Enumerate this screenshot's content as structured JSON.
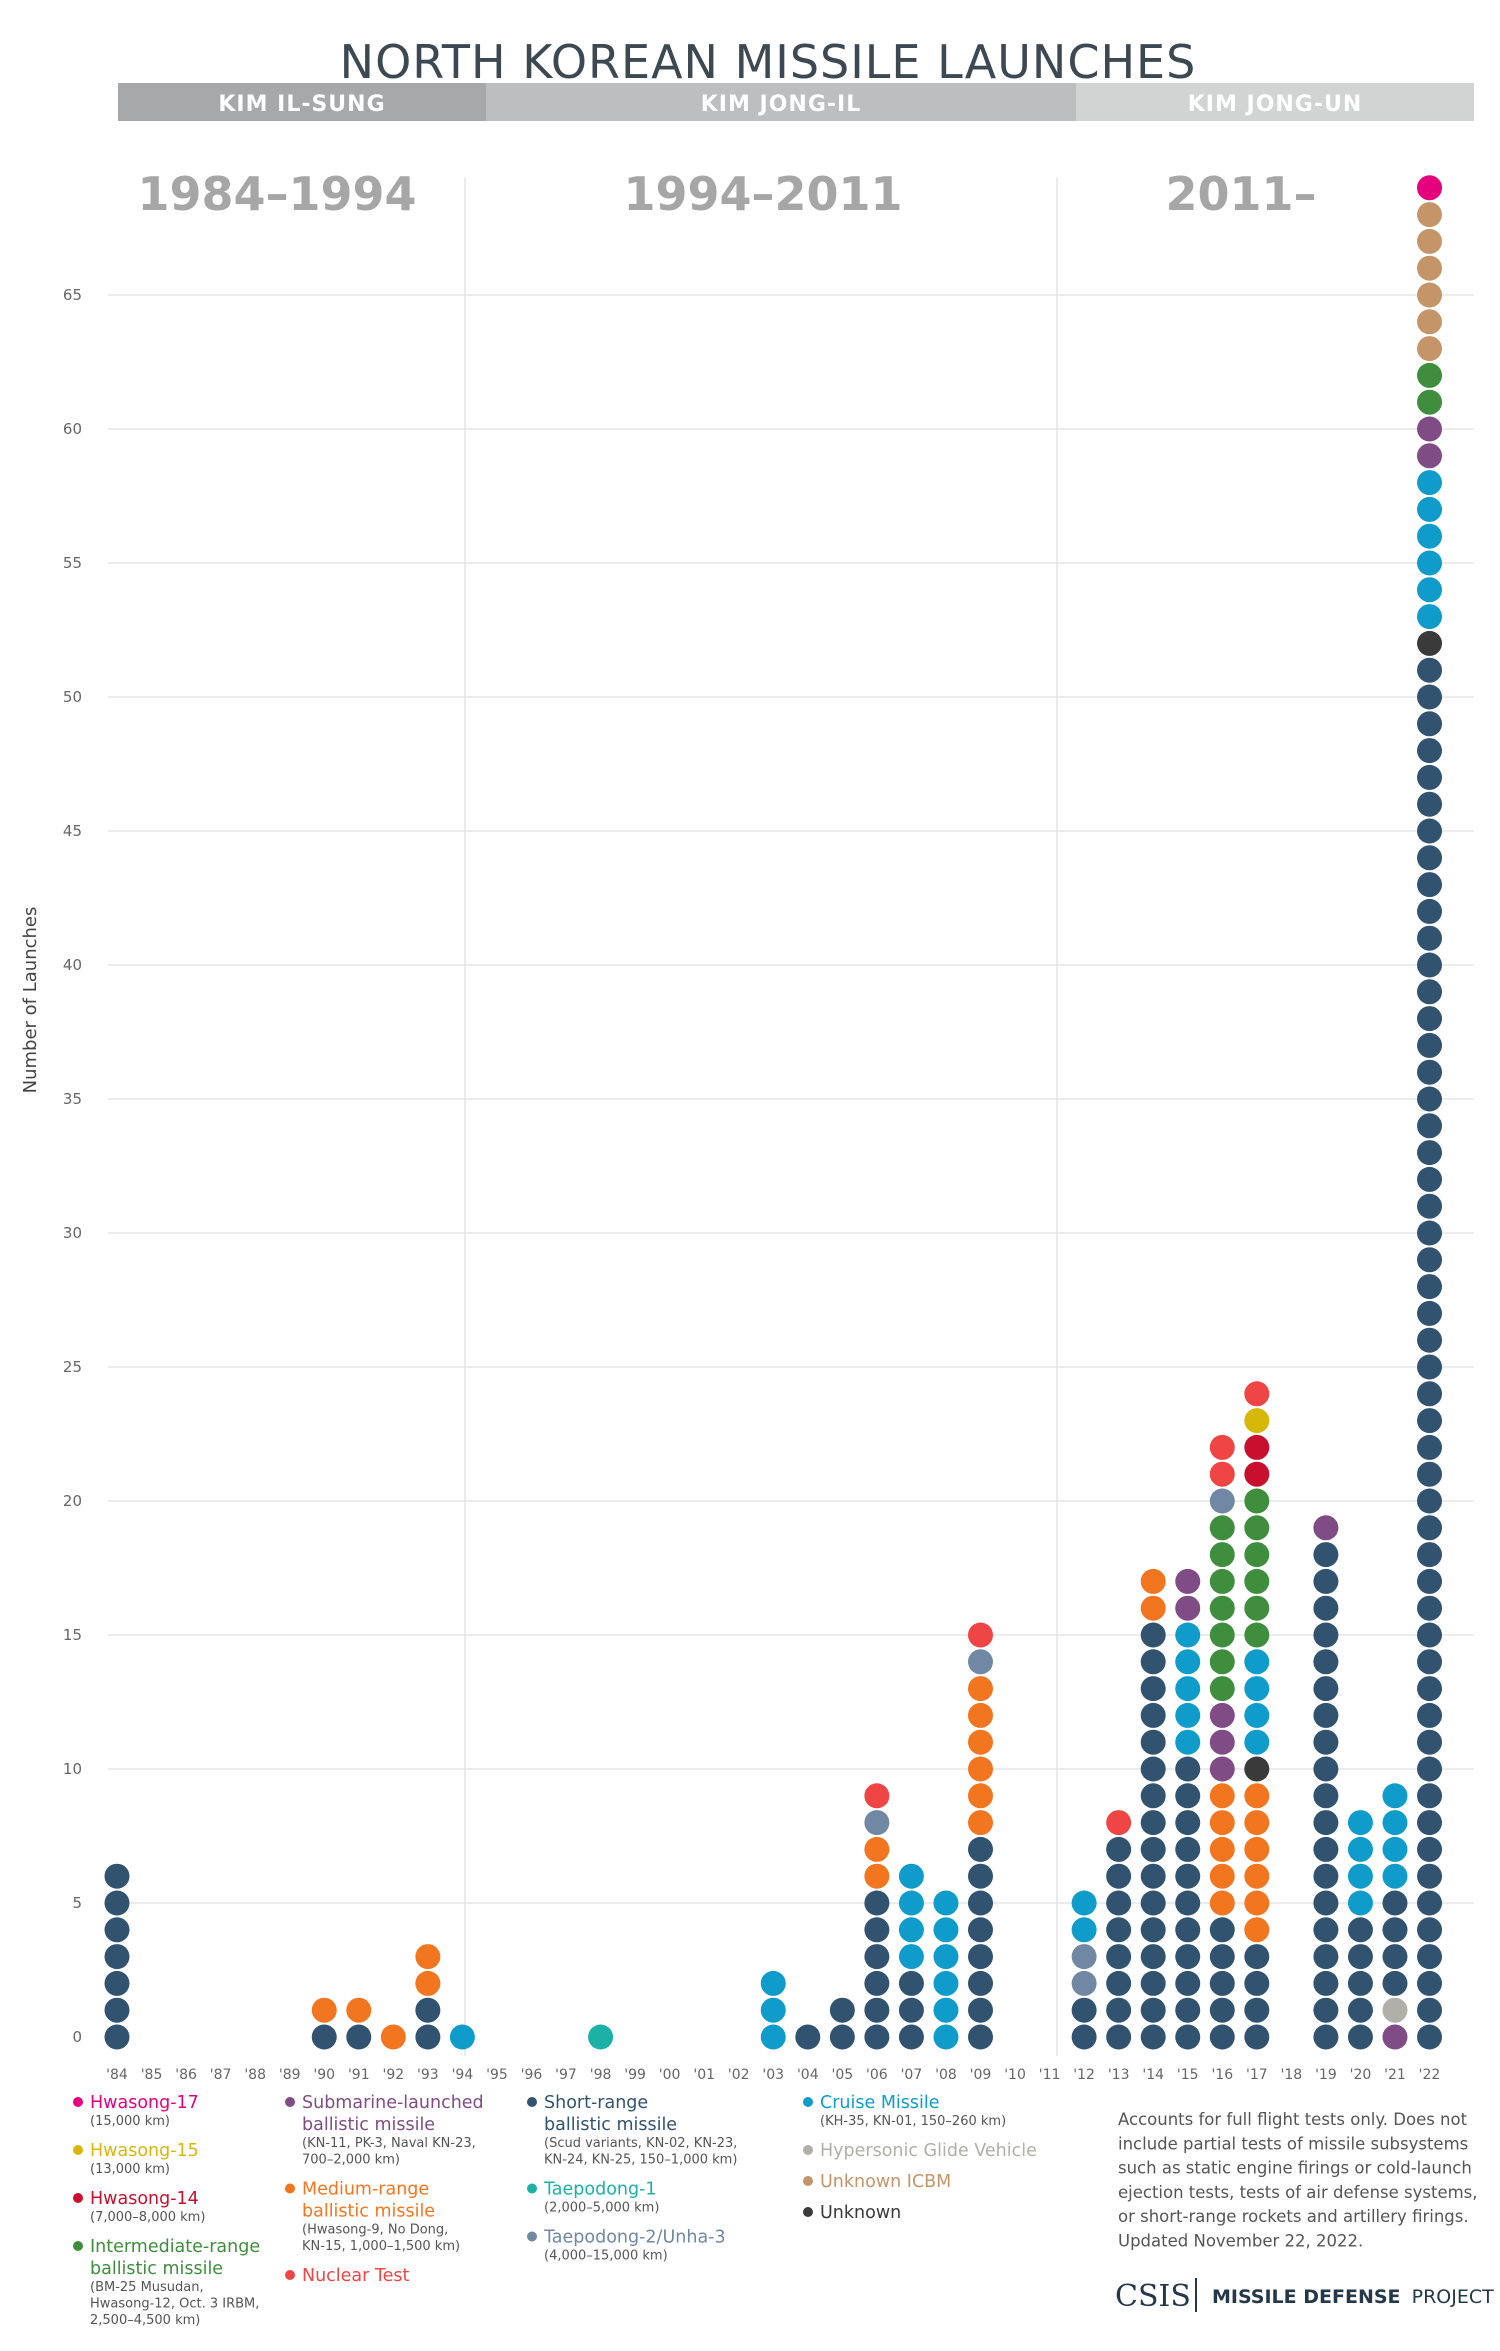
{
  "title": "NORTH KOREAN MISSILE LAUNCHES",
  "leaders": [
    {
      "name": "KIM IL-SUNG",
      "color": "#a6a8aa"
    },
    {
      "name": "KIM JONG-IL",
      "color": "#bcbebf"
    },
    {
      "name": "KIM JONG-UN",
      "color": "#d2d4d4"
    }
  ],
  "eras": [
    "1984–1994",
    "1994–2011",
    "2011–"
  ],
  "types": {
    "HS17": {
      "name": "Hwasong-17",
      "desc": [
        "(15,000 km)"
      ],
      "color": "#e5007e"
    },
    "HS15": {
      "name": "Hwasong-15",
      "desc": [
        "(13,000 km)"
      ],
      "color": "#d7b70a"
    },
    "HS14": {
      "name": "Hwasong-14",
      "desc": [
        "(7,000–8,000 km)"
      ],
      "color": "#c8102e"
    },
    "IRBM": {
      "name": "Intermediate-range ballistic missile",
      "desc": [
        "(BM-25 Musudan,",
        "Hwasong-12, Oct. 3 IRBM,",
        "2,500–4,500 km)"
      ],
      "color": "#3f8e3d"
    },
    "SLBM": {
      "name": "Submarine-launched ballistic missile",
      "desc": [
        "(KN-11, PK-3, Naval KN-23,",
        "700–2,000 km)"
      ],
      "color": "#7f4c85"
    },
    "MRBM": {
      "name": "Medium-range ballistic missile",
      "desc": [
        "(Hwasong-9, No Dong,",
        "KN-15, 1,000–1,500 km)"
      ],
      "color": "#f27620"
    },
    "NUC": {
      "name": "Nuclear Test",
      "desc": [],
      "color": "#ef4545"
    },
    "SRBM": {
      "name": "Short-range ballistic missile",
      "desc": [
        "(Scud variants, KN-02, KN-23,",
        "KN-24, KN-25, 150–1,000 km)"
      ],
      "color": "#31536f"
    },
    "TP1": {
      "name": "Taepodong-1",
      "desc": [
        "(2,000–5,000 km)"
      ],
      "color": "#1cb0a6"
    },
    "TP2": {
      "name": "Taepodong-2/Unha-3",
      "desc": [
        "(4,000–15,000 km)"
      ],
      "color": "#7088a4"
    },
    "CRUISE": {
      "name": "Cruise Missile",
      "desc": [
        "(KH-35, KN-01, 150–260 km)"
      ],
      "color": "#0f9ccb"
    },
    "HGV": {
      "name": "Hypersonic Glide Vehicle",
      "desc": [],
      "color": "#b0b0a8"
    },
    "UICBM": {
      "name": "Unknown ICBM",
      "desc": [],
      "color": "#c5956a"
    },
    "UNK": {
      "name": "Unknown",
      "desc": [],
      "color": "#3a3a3a"
    }
  },
  "legend_columns": [
    [
      "HS17",
      "HS15",
      "HS14",
      "IRBM"
    ],
    [
      "SLBM",
      "MRBM",
      "NUC"
    ],
    [
      "SRBM",
      "TP1",
      "TP2"
    ],
    [
      "CRUISE",
      "HGV",
      "UICBM",
      "UNK"
    ]
  ],
  "note": [
    "Accounts for full flight tests only. Does not",
    "include partial tests of missile subsystems",
    "such as static engine firings or cold-launch",
    "ejection tests, tests of air defense systems,",
    "or short-range rockets and artillery firings.",
    "Updated November 22, 2022."
  ],
  "footer": {
    "org": "CSIS",
    "project_bold": "MISSILE DEFENSE",
    "project_rest": "PROJECT"
  },
  "chart_data": {
    "type": "bar",
    "title": "NORTH KOREAN MISSILE LAUNCHES",
    "ylabel": "Number of Launches",
    "xlabel": "",
    "ylim": [
      0,
      68
    ],
    "yticks": [
      0,
      5,
      10,
      15,
      20,
      25,
      30,
      35,
      40,
      45,
      50,
      55,
      60,
      65
    ],
    "categories": [
      "'84",
      "'85",
      "'86",
      "'87",
      "'88",
      "'89",
      "'90",
      "'91",
      "'92",
      "'93",
      "'94",
      "'95",
      "'96",
      "'97",
      "'98",
      "'99",
      "'00",
      "'01",
      "'02",
      "'03",
      "'04",
      "'05",
      "'06",
      "'07",
      "'08",
      "'09",
      "'10",
      "'11",
      "'12",
      "'13",
      "'14",
      "'15",
      "'16",
      "'17",
      "'18",
      "'19",
      "'20",
      "'21",
      "'22"
    ],
    "launches": [
      [
        {
          "t": "SRBM",
          "n": 7
        }
      ],
      [],
      [],
      [],
      [],
      [],
      [
        {
          "t": "SRBM",
          "n": 1
        },
        {
          "t": "MRBM",
          "n": 1
        }
      ],
      [
        {
          "t": "SRBM",
          "n": 1
        },
        {
          "t": "MRBM",
          "n": 1
        }
      ],
      [
        {
          "t": "MRBM",
          "n": 1
        }
      ],
      [
        {
          "t": "SRBM",
          "n": 2
        },
        {
          "t": "MRBM",
          "n": 2
        }
      ],
      [
        {
          "t": "CRUISE",
          "n": 1
        }
      ],
      [],
      [],
      [],
      [
        {
          "t": "TP1",
          "n": 1
        }
      ],
      [],
      [],
      [],
      [],
      [
        {
          "t": "CRUISE",
          "n": 3
        }
      ],
      [
        {
          "t": "SRBM",
          "n": 1
        }
      ],
      [
        {
          "t": "SRBM",
          "n": 2
        }
      ],
      [
        {
          "t": "SRBM",
          "n": 6
        },
        {
          "t": "MRBM",
          "n": 2
        },
        {
          "t": "TP2",
          "n": 1
        },
        {
          "t": "NUC",
          "n": 1
        }
      ],
      [
        {
          "t": "SRBM",
          "n": 3
        },
        {
          "t": "CRUISE",
          "n": 4
        }
      ],
      [
        {
          "t": "CRUISE",
          "n": 6
        }
      ],
      [
        {
          "t": "SRBM",
          "n": 8
        },
        {
          "t": "MRBM",
          "n": 6
        },
        {
          "t": "TP2",
          "n": 1
        },
        {
          "t": "NUC",
          "n": 1
        }
      ],
      [],
      [],
      [
        {
          "t": "SRBM",
          "n": 2
        },
        {
          "t": "TP2",
          "n": 2
        },
        {
          "t": "CRUISE",
          "n": 2
        }
      ],
      [
        {
          "t": "SRBM",
          "n": 8
        },
        {
          "t": "NUC",
          "n": 1
        }
      ],
      [
        {
          "t": "SRBM",
          "n": 16
        },
        {
          "t": "MRBM",
          "n": 2
        }
      ],
      [
        {
          "t": "SRBM",
          "n": 11
        },
        {
          "t": "CRUISE",
          "n": 5
        },
        {
          "t": "SLBM",
          "n": 2
        }
      ],
      [
        {
          "t": "SRBM",
          "n": 5
        },
        {
          "t": "MRBM",
          "n": 5
        },
        {
          "t": "SLBM",
          "n": 3
        },
        {
          "t": "IRBM",
          "n": 7
        },
        {
          "t": "TP2",
          "n": 1
        },
        {
          "t": "NUC",
          "n": 2
        }
      ],
      [
        {
          "t": "SRBM",
          "n": 4
        },
        {
          "t": "MRBM",
          "n": 6
        },
        {
          "t": "UNK",
          "n": 1
        },
        {
          "t": "CRUISE",
          "n": 4
        },
        {
          "t": "IRBM",
          "n": 6
        },
        {
          "t": "HS14",
          "n": 2
        },
        {
          "t": "HS15",
          "n": 1
        },
        {
          "t": "NUC",
          "n": 1
        }
      ],
      [],
      [
        {
          "t": "SRBM",
          "n": 19
        },
        {
          "t": "SLBM",
          "n": 1
        }
      ],
      [
        {
          "t": "SRBM",
          "n": 5
        },
        {
          "t": "CRUISE",
          "n": 4
        }
      ],
      [
        {
          "t": "SLBM",
          "n": 1
        },
        {
          "t": "HGV",
          "n": 1
        },
        {
          "t": "SRBM",
          "n": 4
        },
        {
          "t": "CRUISE",
          "n": 4
        }
      ],
      [
        {
          "t": "SRBM",
          "n": 52
        },
        {
          "t": "UNK",
          "n": 1
        },
        {
          "t": "CRUISE",
          "n": 6
        },
        {
          "t": "SLBM",
          "n": 2
        },
        {
          "t": "IRBM",
          "n": 2
        },
        {
          "t": "UICBM",
          "n": 6
        },
        {
          "t": "HS17",
          "n": 1
        }
      ]
    ]
  }
}
